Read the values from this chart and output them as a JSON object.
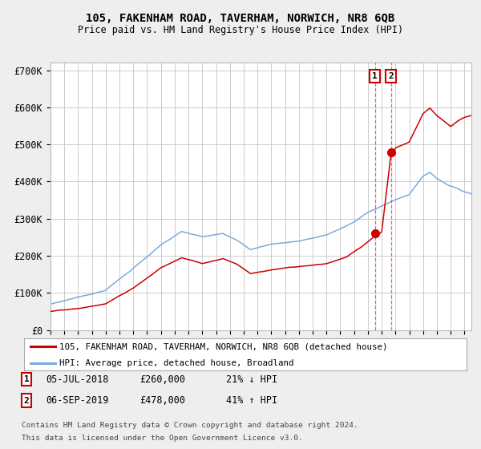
{
  "title": "105, FAKENHAM ROAD, TAVERHAM, NORWICH, NR8 6QB",
  "subtitle": "Price paid vs. HM Land Registry's House Price Index (HPI)",
  "ylim": [
    0,
    720000
  ],
  "yticks": [
    0,
    100000,
    200000,
    300000,
    400000,
    500000,
    600000,
    700000
  ],
  "ytick_labels": [
    "£0",
    "£100K",
    "£200K",
    "£300K",
    "£400K",
    "£500K",
    "£600K",
    "£700K"
  ],
  "background_color": "#eeeeee",
  "plot_bg_color": "#ffffff",
  "grid_color": "#cccccc",
  "red_line_color": "#cc0000",
  "blue_line_color": "#7aaadd",
  "marker_color": "#cc0000",
  "sale1_year": 2018.54,
  "sale1_price": 260000,
  "sale1_label": "05-JUL-2018",
  "sale1_pct": "21% ↓ HPI",
  "sale2_year": 2019.67,
  "sale2_price": 478000,
  "sale2_label": "06-SEP-2019",
  "sale2_pct": "41% ↑ HPI",
  "legend_red": "105, FAKENHAM ROAD, TAVERHAM, NORWICH, NR8 6QB (detached house)",
  "legend_blue": "HPI: Average price, detached house, Broadland",
  "footnote1": "Contains HM Land Registry data © Crown copyright and database right 2024.",
  "footnote2": "This data is licensed under the Open Government Licence v3.0.",
  "start_year": 1995.0,
  "end_year": 2025.5
}
